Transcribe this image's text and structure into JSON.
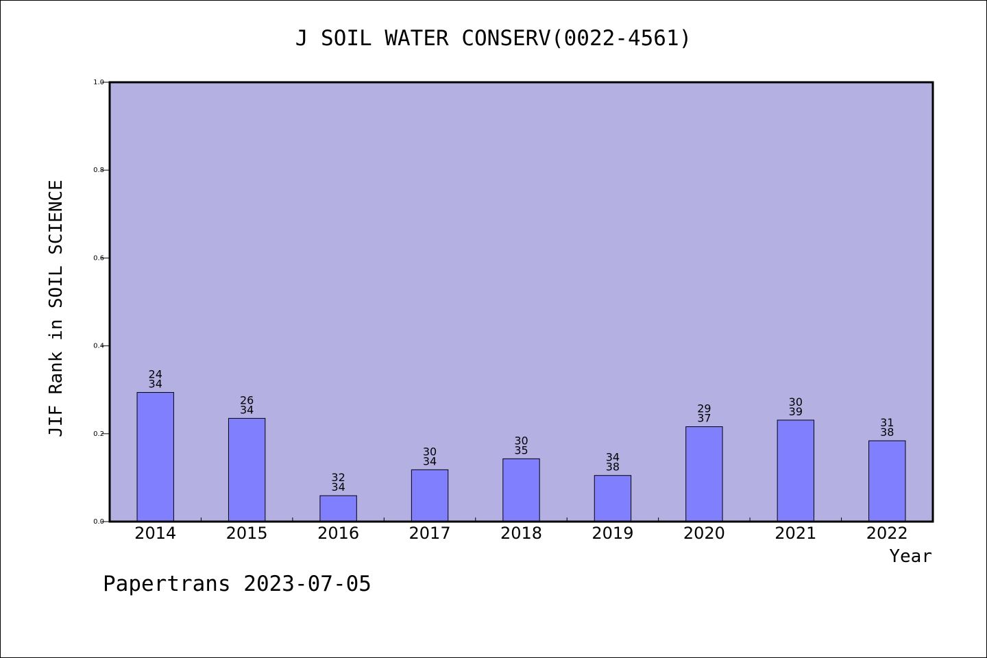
{
  "chart_data": {
    "type": "bar",
    "title": "J SOIL WATER CONSERV(0022-4561)",
    "xlabel": "Year",
    "ylabel": "JIF Rank in SOIL SCIENCE",
    "ylim": [
      0,
      1.0
    ],
    "yticks": [
      "0.0",
      "0.2",
      "0.4",
      "0.6",
      "0.8",
      "1.0"
    ],
    "categories": [
      "2014",
      "2015",
      "2016",
      "2017",
      "2018",
      "2019",
      "2020",
      "2021",
      "2022"
    ],
    "values": [
      0.294,
      0.235,
      0.059,
      0.118,
      0.143,
      0.105,
      0.216,
      0.231,
      0.184
    ],
    "rank": [
      "24",
      "26",
      "32",
      "30",
      "30",
      "34",
      "29",
      "30",
      "31"
    ],
    "total": [
      "34",
      "34",
      "34",
      "34",
      "35",
      "38",
      "37",
      "39",
      "38"
    ],
    "grid": false,
    "plot_background": "#b5b0e2",
    "bar_color": "#8080ff"
  },
  "footer": {
    "text": "Papertrans 2023-07-05"
  }
}
